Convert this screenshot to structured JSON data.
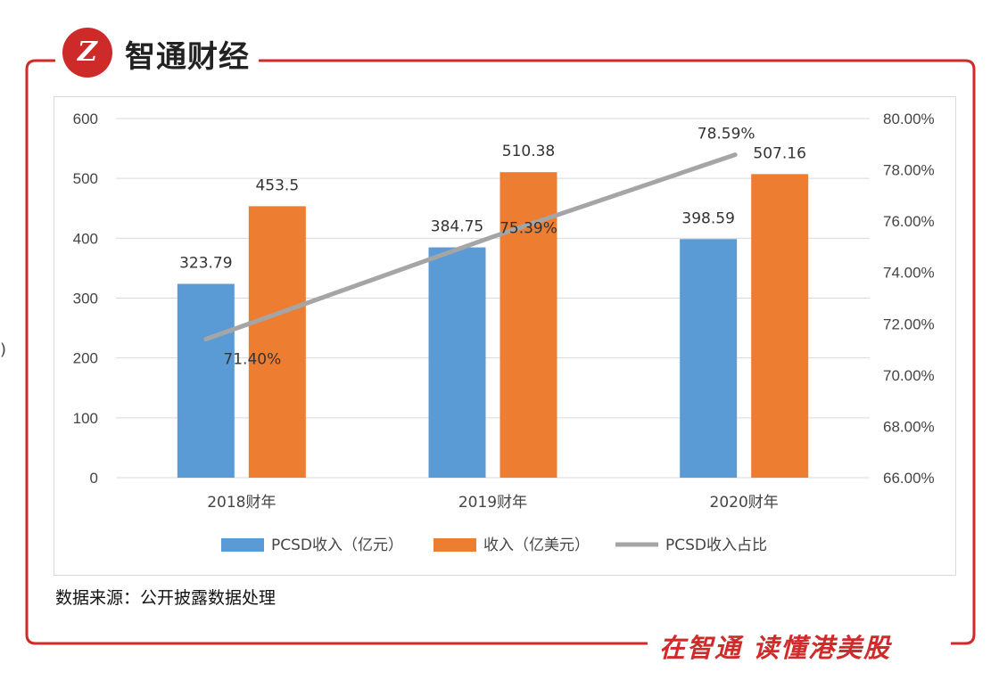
{
  "header": {
    "brand_name": "智通财经",
    "logo_text": "Z"
  },
  "footer": {
    "source_note": "数据来源：公开披露数据处理",
    "slogan": "在智通 读懂港美股"
  },
  "side_mark": ")",
  "colors": {
    "frame_red": "#d02a2a",
    "pcsd_blue": "#5b9bd5",
    "revenue_orange": "#ed7d31",
    "ratio_gray": "#a5a5a5"
  },
  "chart_data": {
    "type": "bar",
    "categories": [
      "2018财年",
      "2019财年",
      "2020财年"
    ],
    "series": [
      {
        "name": "PCSD收入（亿元）",
        "type": "bar",
        "axis": "left",
        "color": "#5b9bd5",
        "values": [
          323.79,
          384.75,
          398.59
        ],
        "labels": [
          "323.79",
          "384.75",
          "398.59"
        ]
      },
      {
        "name": "收入（亿美元）",
        "type": "bar",
        "axis": "left",
        "color": "#ed7d31",
        "values": [
          453.5,
          510.38,
          507.16
        ],
        "labels": [
          "453.5",
          "510.38",
          "507.16"
        ]
      },
      {
        "name": "PCSD收入占比",
        "type": "line",
        "axis": "right",
        "color": "#a5a5a5",
        "values": [
          71.4,
          75.39,
          78.59
        ],
        "labels": [
          "71.40%",
          "75.39%",
          "78.59%"
        ]
      }
    ],
    "y_left": {
      "min": 0,
      "max": 600,
      "ticks": [
        "0",
        "100",
        "200",
        "300",
        "400",
        "500",
        "600"
      ]
    },
    "y_right": {
      "min": 66,
      "max": 80,
      "ticks": [
        "66.00%",
        "68.00%",
        "70.00%",
        "72.00%",
        "74.00%",
        "76.00%",
        "78.00%",
        "80.00%"
      ]
    },
    "grid": true,
    "legend": "bottom"
  }
}
